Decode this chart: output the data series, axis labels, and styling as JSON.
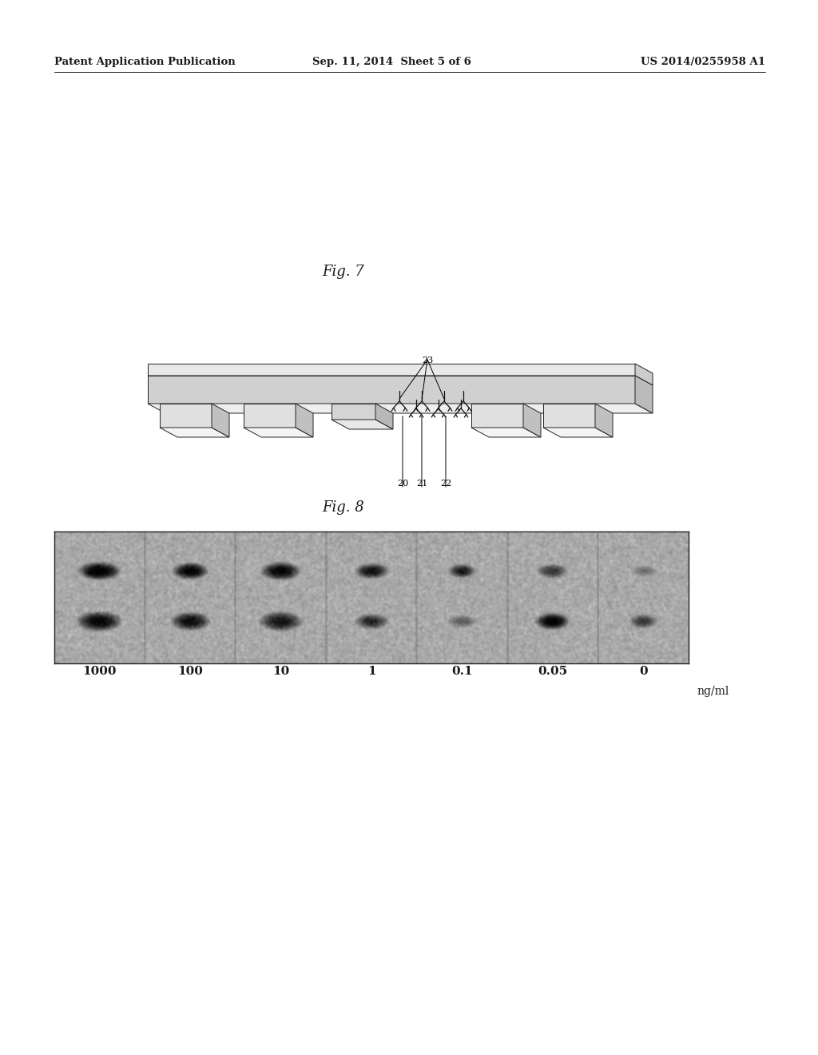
{
  "page_width": 10.24,
  "page_height": 13.2,
  "background_color": "#ffffff",
  "header_text_left": "Patent Application Publication",
  "header_text_center": "Sep. 11, 2014  Sheet 5 of 6",
  "header_text_right": "US 2014/0255958 A1",
  "fig7_label": "Fig. 7",
  "fig8_label": "Fig. 8",
  "fig8_concentrations": [
    "1000",
    "100",
    "10",
    "1",
    "0.1",
    "0.05",
    "0"
  ],
  "fig8_unit": "ng/ml",
  "label_color": "#1a1a1a",
  "font_size_header": 9.5,
  "font_size_fig_label": 13,
  "font_size_conc": 11
}
